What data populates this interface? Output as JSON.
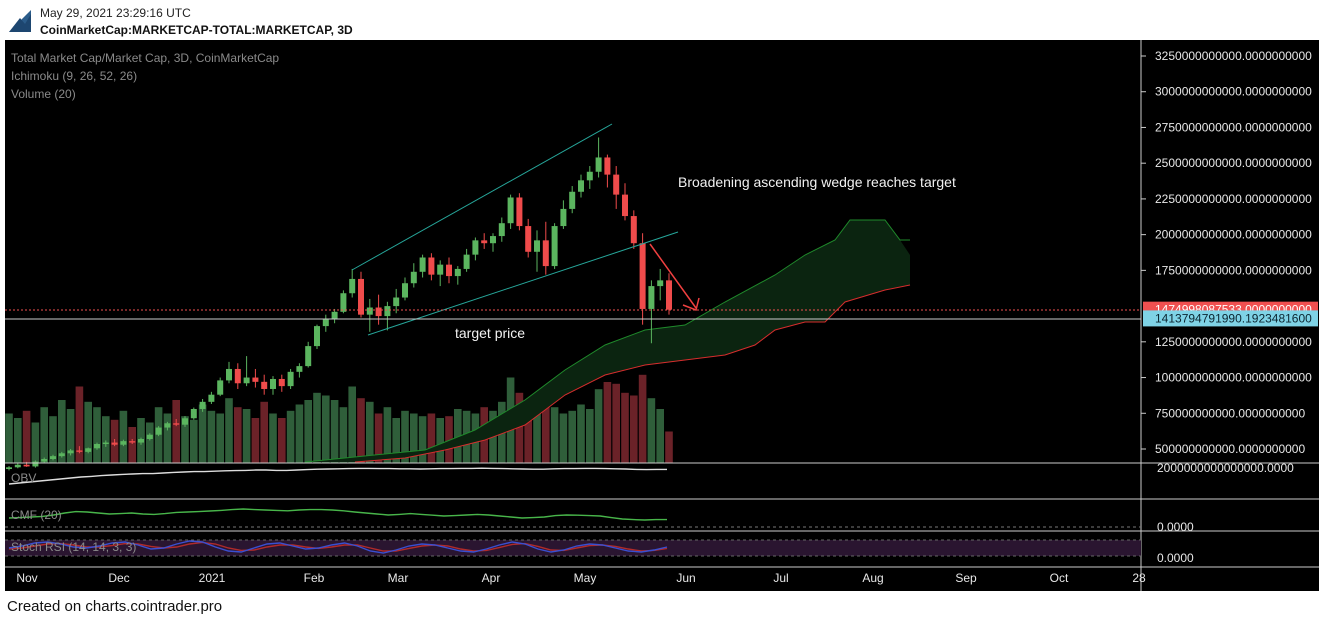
{
  "header": {
    "datetime": "May 29, 2021 23:29:16 UTC",
    "symbol": "CoinMarketCap:MARKETCAP-TOTAL:MARKETCAP, 3D"
  },
  "footer": {
    "credit": "Created on charts.cointrader.pro"
  },
  "legend": {
    "main": "Total Market Cap/Market Cap, 3D, CoinMarketCap",
    "ichimoku": "Ichimoku (9, 26, 52, 26)",
    "volume": "Volume (20)"
  },
  "annotations": {
    "wedge": "Broadening ascending wedge reaches target",
    "target": "target price"
  },
  "colors": {
    "background": "#000000",
    "up": "#5bb55f",
    "down": "#ef4b4b",
    "volume_up": "#2f5e3a",
    "volume_down": "#6b2228",
    "wedge_line": "#26a69a",
    "arrow": "#f04040",
    "kumo_fill": "#0b2410",
    "kumo_border_green": "#1f8a2b",
    "kumo_border_red": "#d62d2d",
    "obv_line": "#dddddd",
    "cmf_line": "#48b54a",
    "stoch_k": "#3a4fd0",
    "stoch_d": "#b02a2a",
    "stoch_band": "#2a1530"
  },
  "chart_data": {
    "type": "candlestick",
    "interval": "3D",
    "y_unit": "USD",
    "ylim": [
      300000000000,
      3330000000000
    ],
    "y_ticks": [
      {
        "value": 3250000000000,
        "label": "3250000000000.0000000000"
      },
      {
        "value": 3000000000000,
        "label": "3000000000000.0000000000"
      },
      {
        "value": 2750000000000,
        "label": "2750000000000.0000000000"
      },
      {
        "value": 2500000000000,
        "label": "2500000000000.0000000000"
      },
      {
        "value": 2250000000000,
        "label": "2250000000000.0000000000"
      },
      {
        "value": 2000000000000,
        "label": "2000000000000.0000000000"
      },
      {
        "value": 1750000000000,
        "label": "1750000000000.0000000000"
      },
      {
        "value": 1250000000000,
        "label": "1250000000000.0000000000"
      },
      {
        "value": 1000000000000,
        "label": "1000000000000.0000000000"
      },
      {
        "value": 750000000000,
        "label": "750000000000.0000000000"
      },
      {
        "value": 500000000000,
        "label": "500000000000.0000000000"
      }
    ],
    "price_tags": [
      {
        "value": 1474998087533,
        "label": "1474998087533.0000000000",
        "color": "#f05050"
      },
      {
        "value": 1413794791990,
        "label": "1413794791990.1923481600",
        "color": "#7fd3e6"
      }
    ],
    "x_labels": [
      "Nov",
      "Dec",
      "2021",
      "Feb",
      "Mar",
      "Apr",
      "May",
      "Jun",
      "Jul",
      "Aug",
      "Sep",
      "Oct",
      "28"
    ],
    "candles": [
      {
        "o": 360,
        "h": 380,
        "l": 350,
        "c": 372
      },
      {
        "o": 372,
        "h": 400,
        "l": 365,
        "c": 390
      },
      {
        "o": 390,
        "h": 410,
        "l": 375,
        "c": 378
      },
      {
        "o": 378,
        "h": 420,
        "l": 370,
        "c": 412
      },
      {
        "o": 412,
        "h": 440,
        "l": 405,
        "c": 430
      },
      {
        "o": 430,
        "h": 460,
        "l": 420,
        "c": 450
      },
      {
        "o": 450,
        "h": 480,
        "l": 440,
        "c": 470
      },
      {
        "o": 470,
        "h": 500,
        "l": 455,
        "c": 490
      },
      {
        "o": 490,
        "h": 520,
        "l": 470,
        "c": 480
      },
      {
        "o": 480,
        "h": 510,
        "l": 470,
        "c": 505
      },
      {
        "o": 505,
        "h": 545,
        "l": 495,
        "c": 535
      },
      {
        "o": 535,
        "h": 560,
        "l": 515,
        "c": 545
      },
      {
        "o": 545,
        "h": 570,
        "l": 520,
        "c": 530
      },
      {
        "o": 530,
        "h": 565,
        "l": 520,
        "c": 555
      },
      {
        "o": 555,
        "h": 570,
        "l": 535,
        "c": 545
      },
      {
        "o": 545,
        "h": 580,
        "l": 530,
        "c": 570
      },
      {
        "o": 570,
        "h": 610,
        "l": 560,
        "c": 600
      },
      {
        "o": 600,
        "h": 660,
        "l": 590,
        "c": 650
      },
      {
        "o": 650,
        "h": 690,
        "l": 630,
        "c": 680
      },
      {
        "o": 680,
        "h": 710,
        "l": 660,
        "c": 670
      },
      {
        "o": 670,
        "h": 730,
        "l": 655,
        "c": 715
      },
      {
        "o": 715,
        "h": 790,
        "l": 705,
        "c": 780
      },
      {
        "o": 780,
        "h": 850,
        "l": 760,
        "c": 830
      },
      {
        "o": 830,
        "h": 900,
        "l": 815,
        "c": 880
      },
      {
        "o": 880,
        "h": 1000,
        "l": 870,
        "c": 980
      },
      {
        "o": 980,
        "h": 1110,
        "l": 960,
        "c": 1060
      },
      {
        "o": 1060,
        "h": 1100,
        "l": 920,
        "c": 960
      },
      {
        "o": 960,
        "h": 1150,
        "l": 940,
        "c": 1000
      },
      {
        "o": 1000,
        "h": 1060,
        "l": 930,
        "c": 970
      },
      {
        "o": 970,
        "h": 1020,
        "l": 880,
        "c": 920
      },
      {
        "o": 920,
        "h": 1010,
        "l": 880,
        "c": 990
      },
      {
        "o": 990,
        "h": 1020,
        "l": 900,
        "c": 940
      },
      {
        "o": 940,
        "h": 1060,
        "l": 920,
        "c": 1040
      },
      {
        "o": 1040,
        "h": 1100,
        "l": 1000,
        "c": 1080
      },
      {
        "o": 1080,
        "h": 1250,
        "l": 1070,
        "c": 1220
      },
      {
        "o": 1220,
        "h": 1370,
        "l": 1200,
        "c": 1360
      },
      {
        "o": 1360,
        "h": 1440,
        "l": 1320,
        "c": 1410
      },
      {
        "o": 1410,
        "h": 1480,
        "l": 1380,
        "c": 1460
      },
      {
        "o": 1460,
        "h": 1610,
        "l": 1450,
        "c": 1590
      },
      {
        "o": 1590,
        "h": 1760,
        "l": 1560,
        "c": 1690
      },
      {
        "o": 1690,
        "h": 1740,
        "l": 1420,
        "c": 1440
      },
      {
        "o": 1440,
        "h": 1550,
        "l": 1320,
        "c": 1490
      },
      {
        "o": 1490,
        "h": 1580,
        "l": 1370,
        "c": 1430
      },
      {
        "o": 1430,
        "h": 1530,
        "l": 1330,
        "c": 1500
      },
      {
        "o": 1500,
        "h": 1620,
        "l": 1450,
        "c": 1560
      },
      {
        "o": 1560,
        "h": 1700,
        "l": 1540,
        "c": 1660
      },
      {
        "o": 1660,
        "h": 1800,
        "l": 1630,
        "c": 1740
      },
      {
        "o": 1740,
        "h": 1860,
        "l": 1700,
        "c": 1840
      },
      {
        "o": 1840,
        "h": 1870,
        "l": 1680,
        "c": 1720
      },
      {
        "o": 1720,
        "h": 1820,
        "l": 1640,
        "c": 1790
      },
      {
        "o": 1790,
        "h": 1840,
        "l": 1660,
        "c": 1710
      },
      {
        "o": 1710,
        "h": 1780,
        "l": 1650,
        "c": 1760
      },
      {
        "o": 1760,
        "h": 1900,
        "l": 1740,
        "c": 1860
      },
      {
        "o": 1860,
        "h": 1980,
        "l": 1820,
        "c": 1960
      },
      {
        "o": 1960,
        "h": 2010,
        "l": 1900,
        "c": 1940
      },
      {
        "o": 1940,
        "h": 2010,
        "l": 1880,
        "c": 1990
      },
      {
        "o": 1990,
        "h": 2120,
        "l": 1950,
        "c": 2080
      },
      {
        "o": 2080,
        "h": 2280,
        "l": 2040,
        "c": 2260
      },
      {
        "o": 2260,
        "h": 2290,
        "l": 2030,
        "c": 2060
      },
      {
        "o": 2060,
        "h": 2110,
        "l": 1840,
        "c": 1880
      },
      {
        "o": 1880,
        "h": 2030,
        "l": 1740,
        "c": 1960
      },
      {
        "o": 1960,
        "h": 2090,
        "l": 1720,
        "c": 1780
      },
      {
        "o": 1780,
        "h": 2080,
        "l": 1760,
        "c": 2060
      },
      {
        "o": 2060,
        "h": 2240,
        "l": 2040,
        "c": 2180
      },
      {
        "o": 2180,
        "h": 2340,
        "l": 2150,
        "c": 2300
      },
      {
        "o": 2300,
        "h": 2420,
        "l": 2260,
        "c": 2380
      },
      {
        "o": 2380,
        "h": 2480,
        "l": 2320,
        "c": 2440
      },
      {
        "o": 2440,
        "h": 2680,
        "l": 2400,
        "c": 2540
      },
      {
        "o": 2540,
        "h": 2560,
        "l": 2330,
        "c": 2420
      },
      {
        "o": 2420,
        "h": 2480,
        "l": 2180,
        "c": 2280
      },
      {
        "o": 2280,
        "h": 2360,
        "l": 2100,
        "c": 2130
      },
      {
        "o": 2130,
        "h": 2170,
        "l": 1900,
        "c": 1940
      },
      {
        "o": 1940,
        "h": 2010,
        "l": 1370,
        "c": 1480
      },
      {
        "o": 1480,
        "h": 1680,
        "l": 1240,
        "c": 1640
      },
      {
        "o": 1640,
        "h": 1760,
        "l": 1540,
        "c": 1680
      },
      {
        "o": 1680,
        "h": 1730,
        "l": 1440,
        "c": 1475
      }
    ],
    "candle_scale": 1000000000,
    "volumes": [
      0.55,
      0.5,
      0.58,
      0.45,
      0.62,
      0.52,
      0.7,
      0.6,
      0.85,
      0.68,
      0.62,
      0.52,
      0.48,
      0.58,
      0.4,
      0.5,
      0.45,
      0.62,
      0.55,
      0.7,
      0.52,
      0.48,
      0.65,
      0.58,
      0.55,
      0.72,
      0.62,
      0.6,
      0.5,
      0.68,
      0.55,
      0.5,
      0.58,
      0.65,
      0.7,
      0.78,
      0.75,
      0.7,
      0.62,
      0.85,
      0.72,
      0.68,
      0.55,
      0.62,
      0.5,
      0.58,
      0.55,
      0.52,
      0.55,
      0.5,
      0.52,
      0.6,
      0.58,
      0.55,
      0.62,
      0.58,
      0.68,
      0.95,
      0.78,
      0.7,
      0.75,
      0.68,
      0.62,
      0.55,
      0.58,
      0.65,
      0.6,
      0.82,
      0.9,
      0.88,
      0.78,
      0.75,
      0.98,
      0.72,
      0.6,
      0.35
    ],
    "obv": [
      0.2,
      0.25,
      0.3,
      0.35,
      0.4,
      0.45,
      0.5,
      0.55,
      0.58,
      0.62,
      0.65,
      0.68,
      0.7,
      0.72,
      0.72,
      0.75,
      0.78,
      0.8,
      0.82,
      0.82,
      0.84,
      0.86,
      0.87,
      0.88,
      0.9,
      0.9,
      0.88,
      0.88,
      0.9,
      0.92,
      0.94,
      0.95,
      0.96,
      0.97,
      0.98,
      0.98,
      0.97,
      0.97,
      0.96,
      0.96,
      0.95,
      0.96,
      0.97,
      0.97,
      0.98,
      0.98,
      0.99,
      0.98,
      0.97,
      0.96,
      0.95,
      0.94,
      0.94,
      0.96,
      0.97,
      0.97,
      0.98,
      0.98,
      0.97,
      0.96,
      0.95,
      0.93,
      0.92,
      0.93,
      0.93
    ],
    "obv_label": "OBV",
    "obv_tick": "2000000000000000.0000",
    "cmf": [
      0.3,
      0.32,
      0.35,
      0.38,
      0.45,
      0.55,
      0.62,
      0.6,
      0.55,
      0.5,
      0.52,
      0.55,
      0.5,
      0.48,
      0.52,
      0.58,
      0.6,
      0.62,
      0.65,
      0.68,
      0.72,
      0.75,
      0.72,
      0.7,
      0.68,
      0.66,
      0.7,
      0.72,
      0.72,
      0.7,
      0.66,
      0.6,
      0.55,
      0.5,
      0.45,
      0.48,
      0.52,
      0.48,
      0.44,
      0.4,
      0.42,
      0.45,
      0.48,
      0.45,
      0.4,
      0.35,
      0.3,
      0.32,
      0.35,
      0.42,
      0.45,
      0.44,
      0.42,
      0.4,
      0.32,
      0.25,
      0.22,
      0.2,
      0.22,
      0.22
    ],
    "cmf_label": "CMF (20)",
    "cmf_tick": "0.0000",
    "stoch_k": [
      0.5,
      0.6,
      0.75,
      0.8,
      0.7,
      0.55,
      0.5,
      0.6,
      0.75,
      0.8,
      0.65,
      0.45,
      0.5,
      0.7,
      0.85,
      0.8,
      0.55,
      0.35,
      0.3,
      0.5,
      0.7,
      0.75,
      0.6,
      0.45,
      0.5,
      0.65,
      0.75,
      0.6,
      0.35,
      0.25,
      0.4,
      0.6,
      0.7,
      0.65,
      0.5,
      0.35,
      0.3,
      0.45,
      0.65,
      0.8,
      0.7,
      0.45,
      0.3,
      0.4,
      0.6,
      0.7,
      0.65,
      0.5,
      0.35,
      0.3,
      0.4,
      0.55
    ],
    "stoch_d": [
      0.45,
      0.5,
      0.6,
      0.7,
      0.72,
      0.65,
      0.55,
      0.55,
      0.62,
      0.72,
      0.7,
      0.58,
      0.5,
      0.55,
      0.7,
      0.78,
      0.7,
      0.5,
      0.38,
      0.4,
      0.55,
      0.65,
      0.65,
      0.55,
      0.48,
      0.55,
      0.65,
      0.65,
      0.5,
      0.35,
      0.35,
      0.48,
      0.6,
      0.65,
      0.6,
      0.45,
      0.35,
      0.38,
      0.52,
      0.68,
      0.72,
      0.58,
      0.4,
      0.38,
      0.5,
      0.62,
      0.65,
      0.58,
      0.45,
      0.35,
      0.38,
      0.48
    ],
    "stoch_label": "Stoch RSI (14, 14, 3, 3)",
    "stoch_tick": "0.0000"
  }
}
